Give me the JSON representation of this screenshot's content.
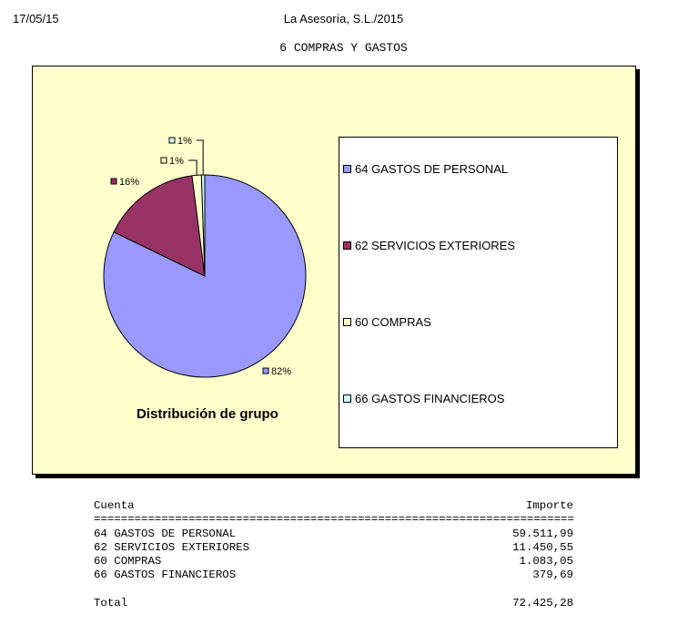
{
  "header": {
    "date": "17/05/15",
    "company": "La Asesoría, S.L./2015",
    "title": "6 COMPRAS Y GASTOS"
  },
  "chart_data": {
    "type": "pie",
    "title": "Distribución de grupo",
    "legend": "right",
    "categories": [
      "64  GASTOS DE PERSONAL",
      "62  SERVICIOS EXTERIORES",
      "60  COMPRAS",
      "66  GASTOS FINANCIEROS"
    ],
    "values": [
      59511.99,
      11450.55,
      1083.05,
      379.69
    ],
    "labels": [
      "82%",
      "16%",
      "1%",
      "1%"
    ],
    "colors": [
      "#9999ff",
      "#993366",
      "#ffffcc",
      "#ccffff"
    ]
  },
  "table": {
    "col_account": "Cuenta",
    "col_amount": "Importe",
    "separator": "===========================================================================",
    "rows": [
      {
        "account": "64 GASTOS DE PERSONAL",
        "amount": "59.511,99"
      },
      {
        "account": "62 SERVICIOS EXTERIORES",
        "amount": "11.450,55"
      },
      {
        "account": "60 COMPRAS",
        "amount": "1.083,05"
      },
      {
        "account": "66 GASTOS FINANCIEROS",
        "amount": "379,69"
      }
    ],
    "total_label": "Total",
    "total_amount": "72.425,28"
  }
}
